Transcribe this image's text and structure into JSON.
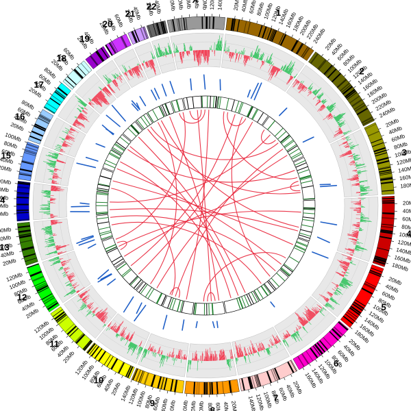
{
  "chart_data": {
    "type": "circos",
    "title": "",
    "tick_unit": "Mb",
    "tick_step_mb": 20,
    "chromosomes": [
      {
        "name": "1",
        "length_mb": 249,
        "color": "#996600"
      },
      {
        "name": "2",
        "length_mb": 243,
        "color": "#666600"
      },
      {
        "name": "3",
        "length_mb": 198,
        "color": "#999900"
      },
      {
        "name": "4",
        "length_mb": 191,
        "color": "#cc0000"
      },
      {
        "name": "5",
        "length_mb": 181,
        "color": "#ff0000"
      },
      {
        "name": "6",
        "length_mb": 171,
        "color": "#ff00cc"
      },
      {
        "name": "7",
        "length_mb": 159,
        "color": "#ffcccc"
      },
      {
        "name": "8",
        "length_mb": 146,
        "color": "#ff9900"
      },
      {
        "name": "9",
        "length_mb": 141,
        "color": "#ffcc00"
      },
      {
        "name": "10",
        "length_mb": 135,
        "color": "#ffff00"
      },
      {
        "name": "11",
        "length_mb": 135,
        "color": "#ccff00"
      },
      {
        "name": "12",
        "length_mb": 133,
        "color": "#00ff00"
      },
      {
        "name": "13",
        "length_mb": 115,
        "color": "#358000"
      },
      {
        "name": "14",
        "length_mb": 107,
        "color": "#0000cc"
      },
      {
        "name": "15",
        "length_mb": 102,
        "color": "#6699ff"
      },
      {
        "name": "16",
        "length_mb": 90,
        "color": "#99ccff"
      },
      {
        "name": "17",
        "length_mb": 81,
        "color": "#00ffff"
      },
      {
        "name": "18",
        "length_mb": 78,
        "color": "#ccffff"
      },
      {
        "name": "19",
        "length_mb": 59,
        "color": "#9900cc"
      },
      {
        "name": "20",
        "length_mb": 63,
        "color": "#cc33ff"
      },
      {
        "name": "21",
        "length_mb": 48,
        "color": "#cc99ff"
      },
      {
        "name": "22",
        "length_mb": 51,
        "color": "#666666"
      },
      {
        "name": "X",
        "length_mb": 155,
        "color": "#999999"
      }
    ],
    "links": [
      [
        "X",
        60,
        "8",
        60
      ],
      [
        "X",
        100,
        "22",
        20
      ],
      [
        "1",
        40,
        "3",
        80
      ],
      [
        "1",
        140,
        "6",
        60
      ],
      [
        "1",
        200,
        "11",
        40
      ],
      [
        "2",
        60,
        "14",
        60
      ],
      [
        "2",
        160,
        "9",
        100
      ],
      [
        "3",
        40,
        "17",
        40
      ],
      [
        "3",
        160,
        "19",
        20
      ],
      [
        "4",
        60,
        "12",
        80
      ],
      [
        "4",
        140,
        "20",
        40
      ],
      [
        "5",
        40,
        "15",
        60
      ],
      [
        "5",
        120,
        "8",
        100
      ],
      [
        "6",
        120,
        "13",
        60
      ],
      [
        "7",
        40,
        "18",
        40
      ],
      [
        "7",
        120,
        "16",
        60
      ],
      [
        "8",
        20,
        "21",
        20
      ],
      [
        "9",
        40,
        "X",
        120
      ],
      [
        "10",
        60,
        "2",
        200
      ],
      [
        "11",
        100,
        "1",
        100
      ],
      [
        "12",
        20,
        "3",
        120
      ],
      [
        "13",
        100,
        "6",
        20
      ],
      [
        "14",
        20,
        "4",
        160
      ],
      [
        "15",
        20,
        "9",
        120
      ],
      [
        "16",
        20,
        "5",
        160
      ],
      [
        "17",
        60,
        "7",
        80
      ],
      [
        "19",
        40,
        "2",
        120
      ],
      [
        "20",
        20,
        "10",
        100
      ],
      [
        "22",
        40,
        "12",
        120
      ],
      [
        "1",
        60,
        "1",
        160
      ],
      [
        "2",
        20,
        "2",
        100
      ],
      [
        "3",
        100,
        "3",
        150
      ],
      [
        "X",
        20,
        "X",
        80
      ],
      [
        "9",
        80,
        "9",
        130
      ],
      [
        "8",
        40,
        "8",
        80
      ],
      [
        "12",
        60,
        "12",
        100
      ]
    ]
  }
}
